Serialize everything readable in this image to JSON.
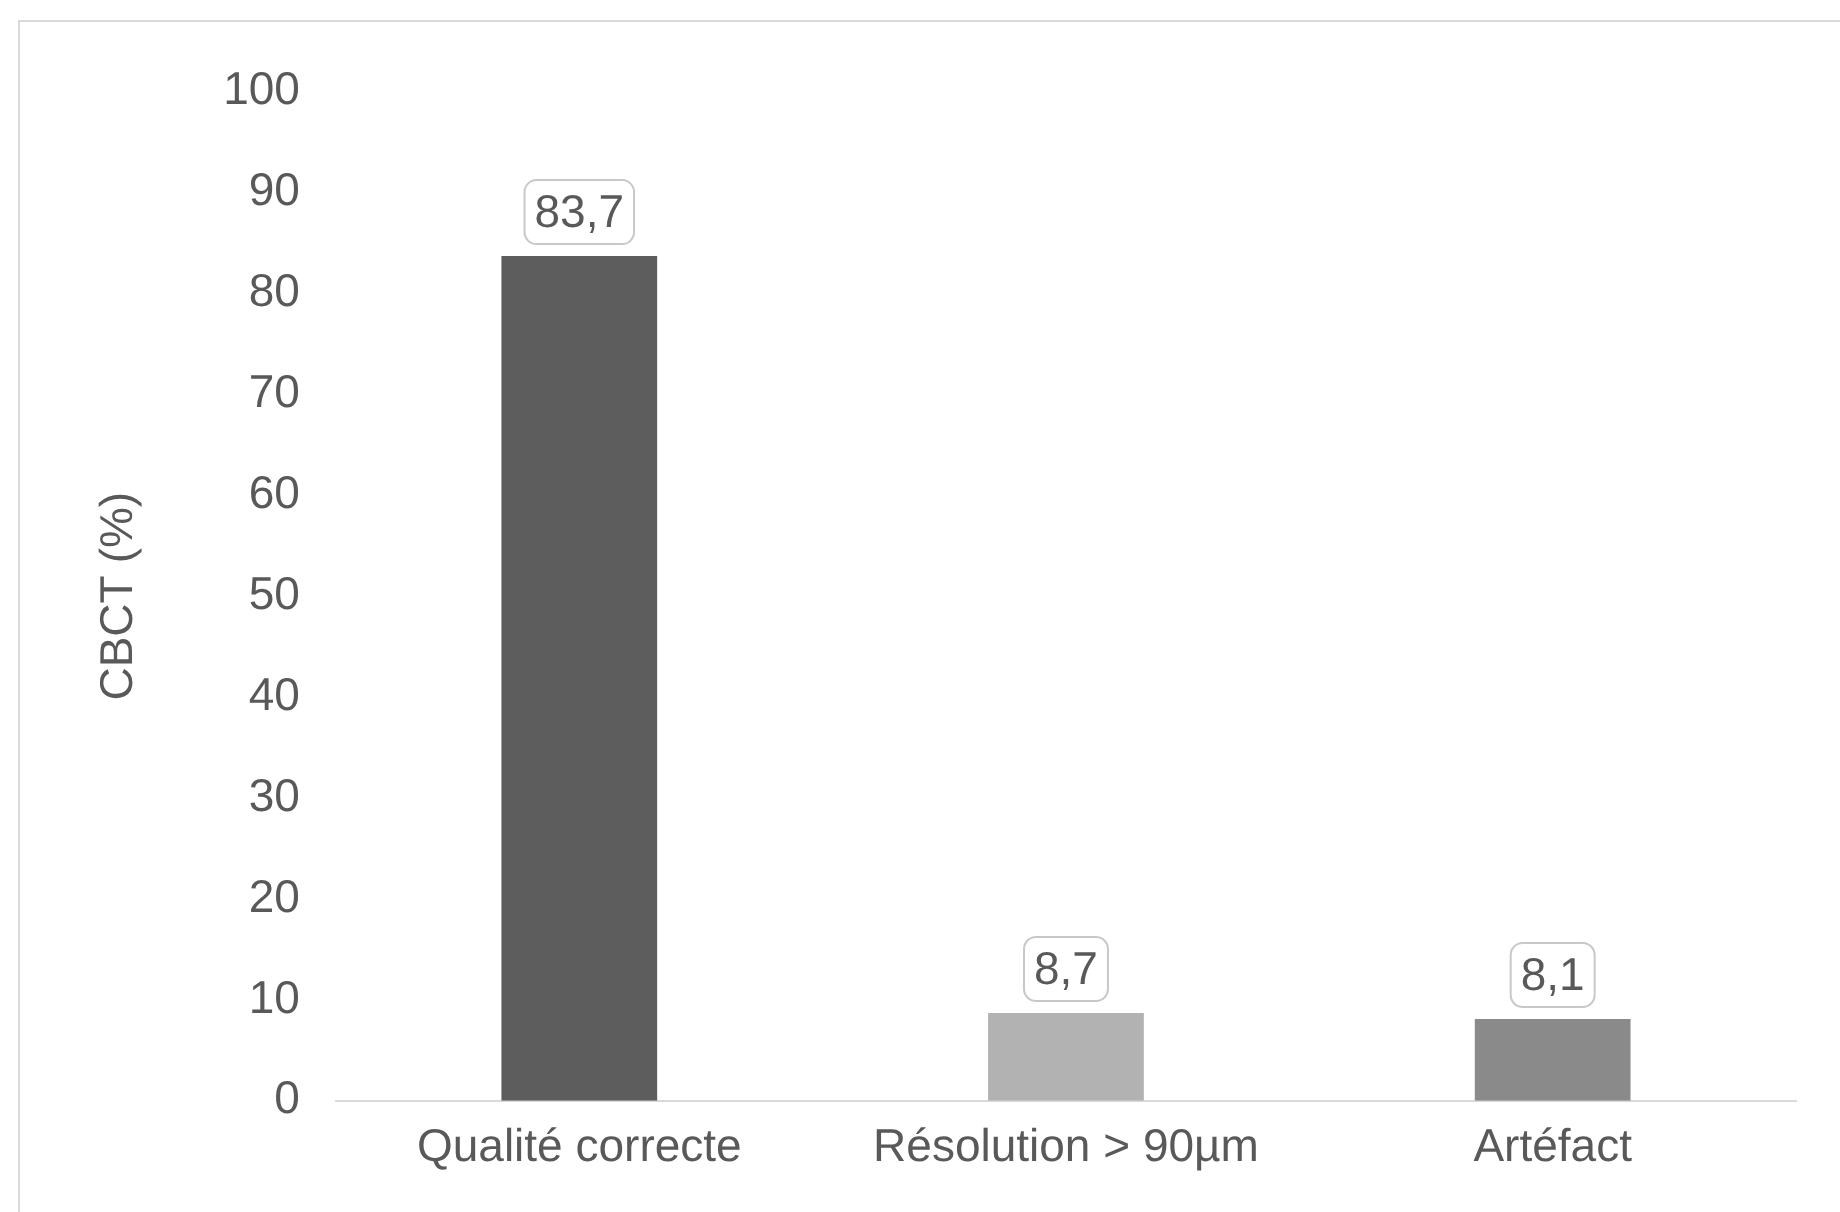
{
  "chart_data": {
    "type": "bar",
    "ylabel": "CBCT (%)",
    "categories": [
      "Qualité correcte",
      "Résolution > 90µm",
      "Artéfact"
    ],
    "values": [
      83.7,
      8.7,
      8.1
    ],
    "colors": [
      "#5d5d5d",
      "#b2b2b2",
      "#8a8a8a"
    ],
    "value_labels": [
      "83,7",
      "8,7",
      "8,1"
    ],
    "ylim": [
      0,
      100
    ],
    "yticks": [
      0,
      10,
      20,
      30,
      40,
      50,
      60,
      70,
      80,
      90,
      100
    ],
    "grid": false,
    "legend": false
  }
}
